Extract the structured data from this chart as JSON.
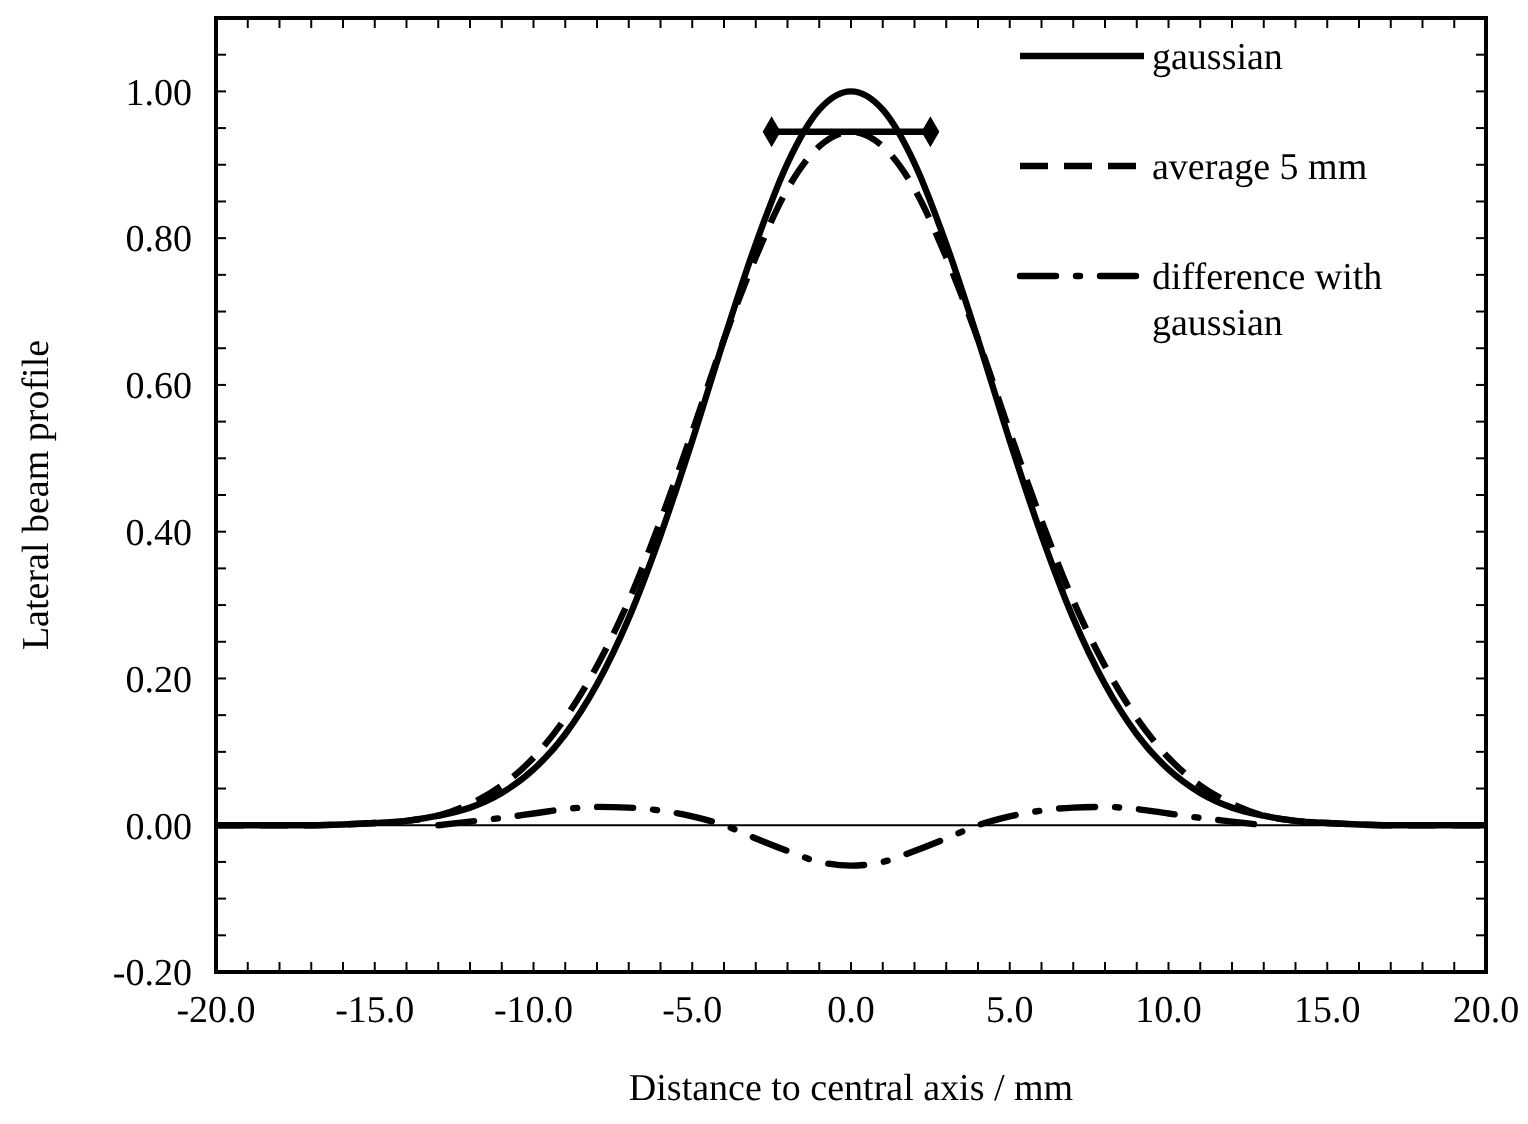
{
  "chart_data": {
    "type": "line",
    "xlabel": "Distance to central axis / mm",
    "ylabel": "Lateral beam profile",
    "x": [
      -20,
      -19,
      -18,
      -17,
      -16,
      -15,
      -14,
      -13,
      -12,
      -11,
      -10,
      -9,
      -8,
      -7,
      -6,
      -5,
      -4,
      -3,
      -2,
      -1,
      0,
      1,
      2,
      3,
      4,
      5,
      6,
      7,
      8,
      9,
      10,
      11,
      12,
      13,
      14,
      15,
      16,
      17,
      18,
      19,
      20
    ],
    "series": [
      {
        "name": "gaussian",
        "color": "#000000",
        "line_style": "solid",
        "values": [
          0,
          0,
          0,
          0,
          0.001,
          0.003,
          0.006,
          0.013,
          0.024,
          0.044,
          0.076,
          0.124,
          0.192,
          0.282,
          0.395,
          0.524,
          0.662,
          0.792,
          0.902,
          0.975,
          1.0,
          0.975,
          0.902,
          0.792,
          0.662,
          0.524,
          0.395,
          0.282,
          0.192,
          0.124,
          0.076,
          0.044,
          0.024,
          0.013,
          0.006,
          0.003,
          0.001,
          0,
          0,
          0,
          0
        ]
      },
      {
        "name": "average 5 mm",
        "color": "#000000",
        "line_style": "dashed",
        "values": [
          0,
          0,
          0,
          0,
          0.001,
          0.003,
          0.006,
          0.013,
          0.029,
          0.054,
          0.092,
          0.146,
          0.217,
          0.306,
          0.415,
          0.536,
          0.662,
          0.774,
          0.867,
          0.925,
          0.945,
          0.925,
          0.867,
          0.774,
          0.662,
          0.536,
          0.415,
          0.306,
          0.217,
          0.146,
          0.092,
          0.054,
          0.029,
          0.013,
          0.006,
          0.003,
          0.001,
          0,
          0,
          0,
          0
        ]
      },
      {
        "name": "difference with gaussian",
        "color": "#000000",
        "line_style": "dashdot",
        "x": [
          -13,
          -12,
          -11,
          -10,
          -9,
          -8,
          -7,
          -6,
          -5,
          -4,
          -3,
          -2,
          -1,
          0,
          1,
          2,
          3,
          4,
          5,
          6,
          7,
          8,
          9,
          10,
          11,
          12,
          13
        ],
        "values": [
          0,
          0.005,
          0.01,
          0.016,
          0.022,
          0.025,
          0.024,
          0.02,
          0.012,
          0,
          -0.018,
          -0.035,
          -0.05,
          -0.055,
          -0.05,
          -0.035,
          -0.018,
          0,
          0.012,
          0.02,
          0.024,
          0.025,
          0.022,
          0.016,
          0.01,
          0.005,
          0
        ]
      },
      {
        "color": "#000000",
        "line_style": "solid",
        "marker": "diamond",
        "x": [
          -2.5,
          2.5
        ],
        "values": [
          0.945,
          0.945
        ]
      }
    ],
    "xlim": [
      -20,
      20
    ],
    "xticks": [
      {
        "value": -20,
        "label": "-20.0"
      },
      {
        "value": -15,
        "label": "-15.0"
      },
      {
        "value": -10,
        "label": "-10.0"
      },
      {
        "value": -5,
        "label": "-5.0"
      },
      {
        "value": 0,
        "label": "0.0"
      },
      {
        "value": 5,
        "label": "5.0"
      },
      {
        "value": 10,
        "label": "10.0"
      },
      {
        "value": 15,
        "label": "15.0"
      },
      {
        "value": 20,
        "label": "20.0"
      }
    ],
    "ylim": [
      -0.2,
      1.1
    ],
    "yticks": [
      {
        "value": -0.2,
        "label": "-0.20"
      },
      {
        "value": 0,
        "label": "0.00"
      },
      {
        "value": 0.2,
        "label": "0.20"
      },
      {
        "value": 0.4,
        "label": "0.40"
      },
      {
        "value": 0.6,
        "label": "0.60"
      },
      {
        "value": 0.8,
        "label": "0.80"
      },
      {
        "value": 1.0,
        "label": "1.00"
      }
    ],
    "ref_lines": [
      {
        "axis": "y",
        "value": 0,
        "color": "#000000"
      }
    ],
    "grid": false,
    "legend": "top right",
    "marker": "none"
  }
}
